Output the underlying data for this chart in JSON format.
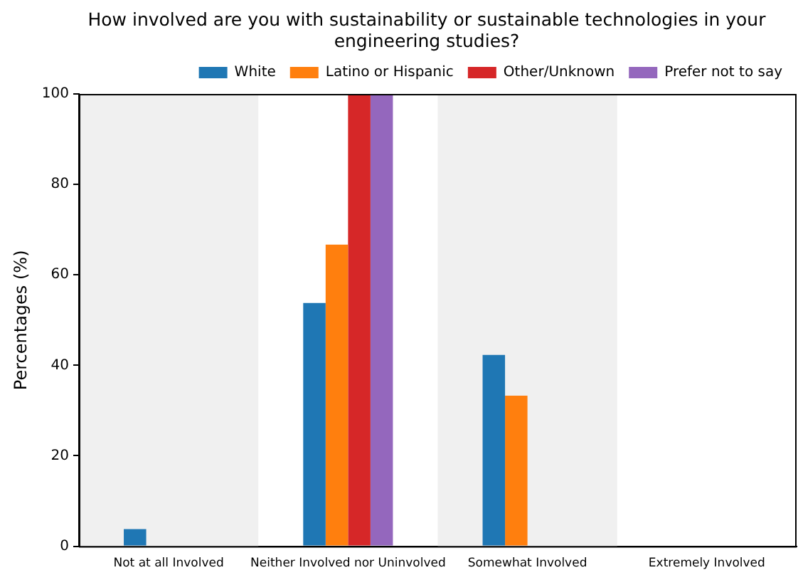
{
  "chart_data": {
    "type": "bar",
    "title": "How involved are you with sustainability or sustainable technologies in your engineering studies?",
    "ylabel": "Percentages (%)",
    "categories": [
      "Not at all Involved",
      "Neither Involved nor Uninvolved",
      "Somewhat Involved",
      "Extremely Involved"
    ],
    "series": [
      {
        "name": "White",
        "color": "#1f77b4",
        "values": [
          3.8,
          53.8,
          42.3,
          0
        ]
      },
      {
        "name": "Latino or Hispanic",
        "color": "#ff7f0e",
        "values": [
          0,
          66.7,
          33.3,
          0
        ]
      },
      {
        "name": "Other/Unknown",
        "color": "#d62728",
        "values": [
          0,
          100,
          0,
          0
        ]
      },
      {
        "name": "Prefer not to say",
        "color": "#9467bd",
        "values": [
          0,
          100,
          0,
          0
        ]
      }
    ],
    "ylim": [
      0,
      100
    ],
    "yticks": [
      0,
      20,
      40,
      60,
      80,
      100
    ],
    "grid": false,
    "legend": "top right",
    "bands": [
      {
        "axis": "x",
        "from": "Not at all Involved",
        "to": "Not at all Involved",
        "color": "#f0f0f0"
      },
      {
        "axis": "x",
        "from": "Somewhat Involved",
        "to": "Somewhat Involved",
        "color": "#f0f0f0"
      }
    ]
  }
}
